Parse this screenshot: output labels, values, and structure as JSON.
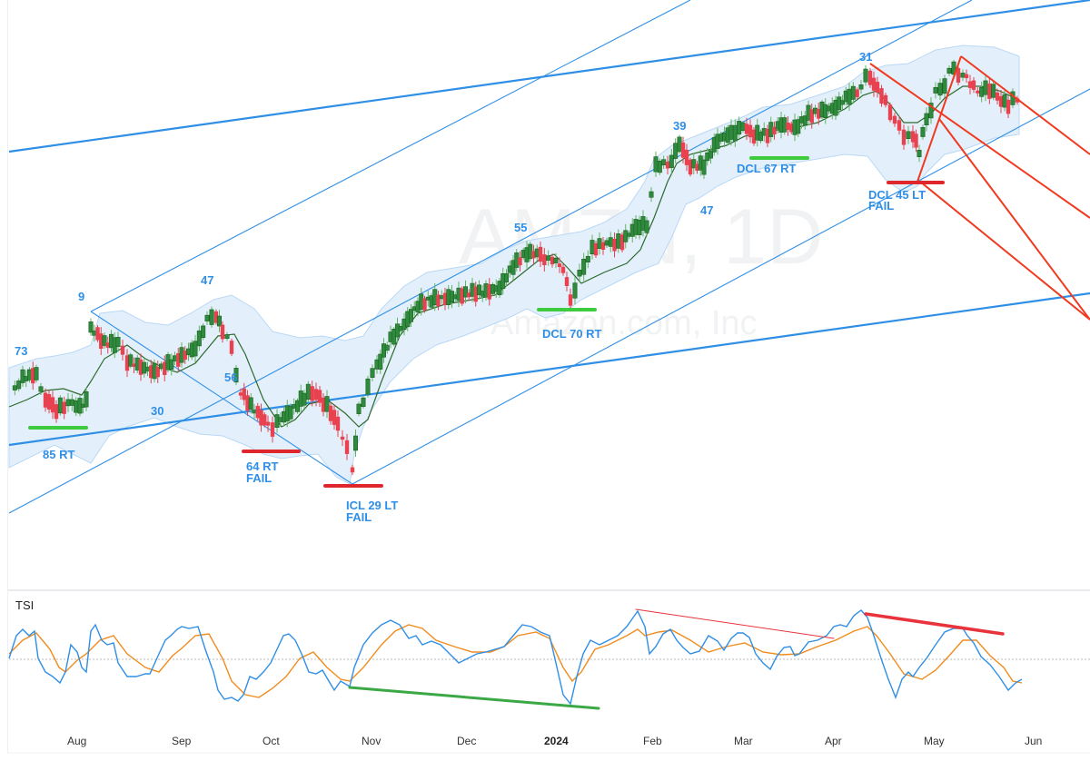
{
  "chart_data": [
    {
      "type": "candlestick",
      "title": "AMZN, 1D",
      "subtitle": "Amazon.com, Inc",
      "xlabel": "",
      "ylabel": "",
      "x_ticks": [
        "Aug",
        "Sep",
        "Oct",
        "Nov",
        "Dec",
        "2024",
        "Feb",
        "Mar",
        "Apr",
        "May",
        "Jun"
      ],
      "grid": false,
      "overlays": [
        "Bollinger-style envelope band (light blue)",
        "moving average (dark green)",
        "trend channel lines (blue)",
        "pitchfork lines (red-orange)"
      ],
      "cycle_annotations": [
        {
          "label": "73",
          "x_approx": "mid-Jul 2023"
        },
        {
          "label": "9",
          "x_approx": "late Jul 2023"
        },
        {
          "label": "85 RT",
          "x_approx": "early Aug 2023",
          "marker": "green low line"
        },
        {
          "label": "47",
          "x_approx": "early Sep 2023"
        },
        {
          "label": "30",
          "x_approx": "late Aug 2023"
        },
        {
          "label": "56",
          "x_approx": "mid Sep 2023"
        },
        {
          "label": "64 RT FAIL",
          "x_approx": "early Oct 2023",
          "marker": "red low line"
        },
        {
          "label": "ICL 29 LT FAIL",
          "x_approx": "late Oct 2023",
          "marker": "red low line"
        },
        {
          "label": "55",
          "x_approx": "mid Dec 2023"
        },
        {
          "label": "DCL 70 RT",
          "x_approx": "early Jan 2024",
          "marker": "green low line"
        },
        {
          "label": "39",
          "x_approx": "early Feb 2024"
        },
        {
          "label": "47",
          "x_approx": "mid Feb 2024"
        },
        {
          "label": "DCL 67 RT",
          "x_approx": "early Mar 2024",
          "marker": "green low line"
        },
        {
          "label": "31",
          "x_approx": "mid Apr 2024"
        },
        {
          "label": "DCL 45 LT FAIL",
          "x_approx": "early May 2024",
          "marker": "red low line"
        }
      ],
      "trend_pattern": "uptrend channel from Oct 2023 low into Apr 2024 high, pullback late Apr, retest high mid May, drifting lower late May"
    },
    {
      "type": "line",
      "title": "TSI",
      "x_ticks": [
        "Aug",
        "Sep",
        "Oct",
        "Nov",
        "Dec",
        "2024",
        "Feb",
        "Mar",
        "Apr",
        "May",
        "Jun"
      ],
      "series": [
        {
          "name": "TSI",
          "color": "#2f8fe6"
        },
        {
          "name": "Signal",
          "color": "#f08c1e"
        }
      ],
      "zero_line": "dotted gray",
      "divergence_lines": [
        {
          "color": "#3aa845",
          "from": "late Oct 2023 low",
          "to": "early Jan 2024 low",
          "meaning": "bullish divergence"
        },
        {
          "color": "#e8323c",
          "from": "late Jan 2024 high",
          "to": "early Apr 2024",
          "meaning": "bearish divergence (thin)"
        },
        {
          "color": "#e8323c",
          "from": "mid Apr 2024 high",
          "to": "mid May 2024 high",
          "meaning": "bearish divergence (thick)"
        }
      ]
    }
  ],
  "watermark": {
    "symbol": "AMZN, 1D",
    "company": "Amazon.com, Inc"
  },
  "annotations": {
    "a73": "73",
    "a9": "9",
    "a85": "85 RT",
    "a47a": "47",
    "a30": "30",
    "a56": "56",
    "a64_1": "64 RT",
    "a64_2": "FAIL",
    "icl_1": "ICL 29 LT",
    "icl_2": "FAIL",
    "a55": "55",
    "dcl70": "DCL 70 RT",
    "a39": "39",
    "a47b": "47",
    "dcl67": "DCL 67 RT",
    "a31": "31",
    "dcl45_1": "DCL 45 LT",
    "dcl45_2": "FAIL"
  },
  "indicator": {
    "label": "TSI"
  },
  "x_axis": {
    "ticks": [
      "Aug",
      "Sep",
      "Oct",
      "Nov",
      "Dec",
      "2024",
      "Feb",
      "Mar",
      "Apr",
      "May",
      "Jun"
    ]
  },
  "colors": {
    "up": "#2e8b3e",
    "down": "#e8414f",
    "band_fill": "#e3f0fc",
    "band_edge": "#b9d8f5",
    "ma": "#2d6a2d",
    "channel": "#2f8fe6",
    "pitchfork": "#f0391e",
    "tsi": "#2f8fe6",
    "signal": "#f08c1e",
    "green_mark": "#3dcc3d",
    "red_mark": "#e0262d"
  }
}
